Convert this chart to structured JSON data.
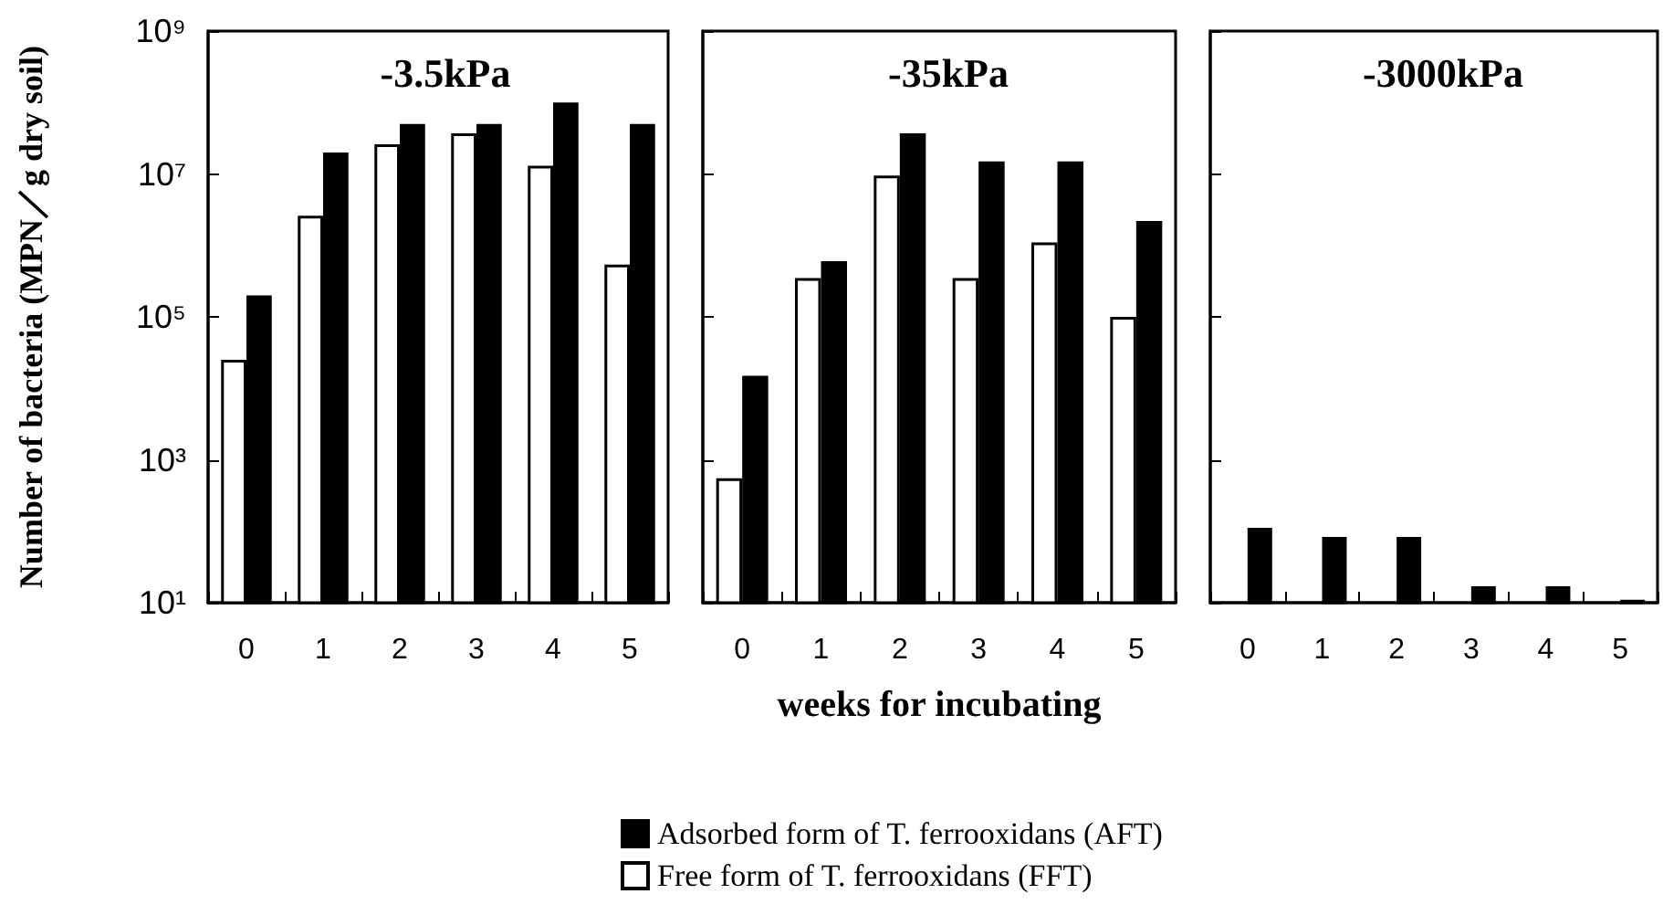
{
  "chart_data": [
    {
      "type": "bar",
      "title": "-3.5kPa",
      "ylabel": "Number of bacteria (MPN／g dry soil)",
      "categories": [
        "0",
        "1",
        "2",
        "3",
        "4",
        "5"
      ],
      "log": true,
      "ylim": [
        10,
        1000000000
      ],
      "yticks": [
        {
          "value": 10,
          "label": "10¹"
        },
        {
          "value": 1000,
          "label": "10³"
        },
        {
          "value": 100000,
          "label": "10⁵"
        },
        {
          "value": 10000000,
          "label": "10⁷"
        },
        {
          "value": 1000000000,
          "label": "10⁹"
        }
      ],
      "grid": false,
      "legend": false,
      "series": [
        {
          "color": "#ffffff",
          "values": [
            25000,
            2600000,
            26000000,
            37000000,
            13000000,
            540000
          ]
        },
        {
          "color": "#000000",
          "values": [
            200000,
            20000000,
            50000000,
            50000000,
            100000000,
            50000000
          ]
        }
      ]
    },
    {
      "type": "bar",
      "title": "-35kPa",
      "xlabel": "weeks for incubating",
      "categories": [
        "0",
        "1",
        "2",
        "3",
        "4",
        "5"
      ],
      "log": true,
      "ylim": [
        10,
        1000000000
      ],
      "yticks": [
        {
          "value": 10,
          "label": null
        },
        {
          "value": 1000,
          "label": null
        },
        {
          "value": 100000,
          "label": null
        },
        {
          "value": 10000000,
          "label": null
        },
        {
          "value": 1000000000,
          "label": null
        }
      ],
      "tick_labels": "x",
      "grid": false,
      "legend": "bottom",
      "series": [
        {
          "name": "Free form of T. ferrooxidans (FFT)",
          "color": "#ffffff",
          "values": [
            550,
            350000,
            9500000,
            350000,
            1100000,
            100000
          ]
        },
        {
          "name": "Adsorbed form of T. ferrooxidans (AFT)",
          "color": "#000000",
          "values": [
            15000,
            600000,
            37000000,
            15000000,
            15000000,
            2200000
          ]
        }
      ]
    },
    {
      "type": "bar",
      "title": "-3000kPa",
      "categories": [
        "0",
        "1",
        "2",
        "3",
        "4",
        "5"
      ],
      "log": true,
      "ylim": [
        10,
        1000000000
      ],
      "yticks": [
        {
          "value": 10,
          "label": null
        },
        {
          "value": 1000,
          "label": null
        },
        {
          "value": 100000,
          "label": null
        },
        {
          "value": 10000000,
          "label": null
        },
        {
          "value": 1000000000,
          "label": null
        }
      ],
      "tick_labels": "x",
      "grid": false,
      "legend": false,
      "series": [
        {
          "color": "#ffffff",
          "values": [
            null,
            null,
            null,
            null,
            null,
            null
          ]
        },
        {
          "color": "#000000",
          "values": [
            112,
            83,
            83,
            17,
            17,
            11
          ]
        }
      ]
    }
  ]
}
